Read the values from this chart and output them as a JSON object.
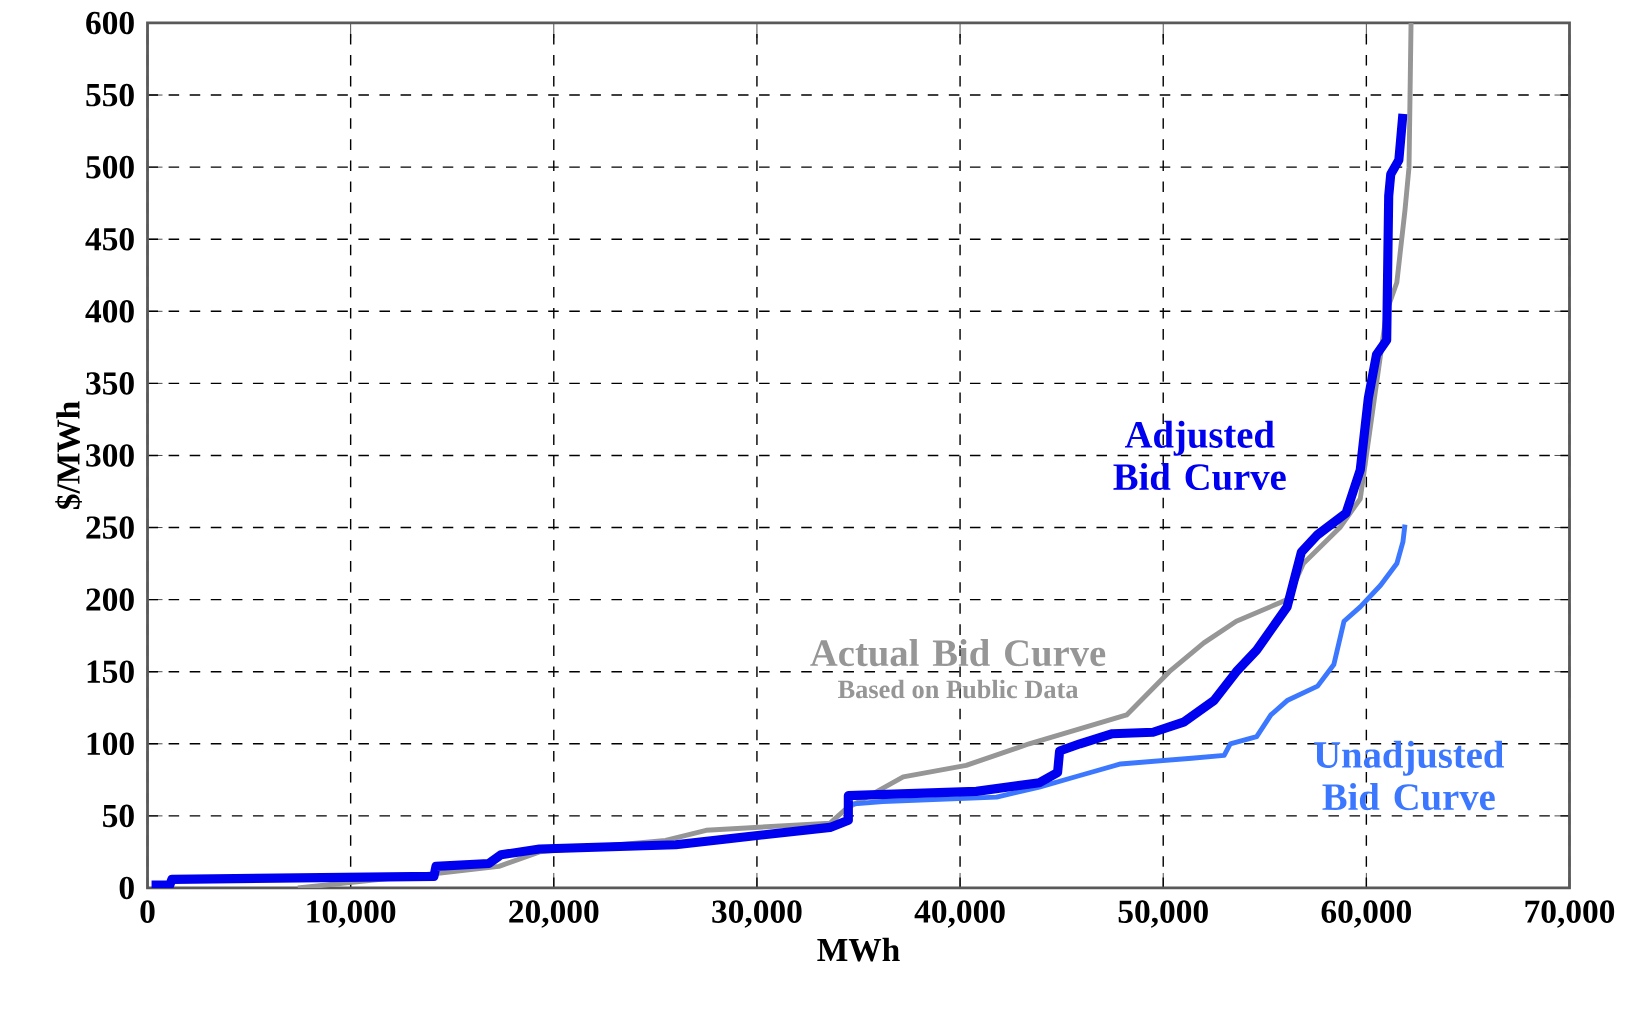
{
  "chart_data": {
    "type": "line",
    "xlabel": "MWh",
    "ylabel": "$/MWh",
    "xlim": [
      0,
      70000
    ],
    "ylim": [
      0,
      600
    ],
    "xticks": [
      {
        "value": 0,
        "label": "0"
      },
      {
        "value": 10000,
        "label": "10,000"
      },
      {
        "value": 20000,
        "label": "20,000"
      },
      {
        "value": 30000,
        "label": "30,000"
      },
      {
        "value": 40000,
        "label": "40,000"
      },
      {
        "value": 50000,
        "label": "50,000"
      },
      {
        "value": 60000,
        "label": "60,000"
      },
      {
        "value": 70000,
        "label": "70,000"
      }
    ],
    "yticks": [
      0,
      50,
      100,
      150,
      200,
      250,
      300,
      350,
      400,
      450,
      500,
      550,
      600
    ],
    "grid": true,
    "legend": false,
    "marker": "none",
    "line_style": "solid",
    "annotations": [
      "Based on Public Data"
    ],
    "series": [
      {
        "name": "Actual Bid Curve",
        "color": "#969696",
        "x": [
          7400,
          14200,
          14200,
          17300,
          17300,
          19300,
          25500,
          27500,
          33600,
          34400,
          37200,
          40300,
          43400,
          48200,
          50300,
          52000,
          53600,
          56100,
          56900,
          58700,
          59700,
          60500,
          61000,
          61500,
          61900,
          62100,
          62200
        ],
        "values": [
          0,
          10,
          10,
          15,
          15,
          25,
          33,
          40,
          45,
          55,
          77,
          85,
          100,
          120,
          150,
          170,
          185,
          200,
          225,
          250,
          270,
          350,
          400,
          420,
          470,
          500,
          600
        ]
      },
      {
        "name": "Unadjusted Bid Curve",
        "color": "#3c78ff",
        "x": [
          34500,
          36200,
          41800,
          43900,
          45900,
          47900,
          51400,
          53000,
          53300,
          54600,
          55300,
          56100,
          57600,
          58400,
          58900,
          59700,
          60700,
          61500,
          61800,
          61900
        ],
        "values": [
          58,
          60,
          63,
          70,
          78,
          86,
          90,
          92,
          100,
          105,
          120,
          130,
          140,
          155,
          185,
          195,
          210,
          225,
          240,
          252
        ]
      },
      {
        "name": "Adjusted Bid Curve",
        "color": "#0000f0",
        "x": [
          200,
          1100,
          1200,
          14100,
          14200,
          16800,
          17400,
          19300,
          26000,
          28500,
          33600,
          34500,
          34500,
          40800,
          43900,
          44800,
          44900,
          45900,
          47500,
          49500,
          51000,
          52500,
          53600,
          54600,
          56100,
          56800,
          57600,
          59000,
          59700,
          60100,
          60500,
          61000,
          61100,
          61200,
          61600,
          61800
        ],
        "values": [
          2,
          2,
          6,
          8,
          15,
          17,
          23,
          27,
          30,
          34,
          42,
          47,
          64,
          67,
          73,
          80,
          95,
          100,
          107,
          108,
          115,
          130,
          150,
          165,
          195,
          233,
          245,
          260,
          290,
          340,
          370,
          380,
          480,
          495,
          505,
          537
        ]
      }
    ]
  }
}
